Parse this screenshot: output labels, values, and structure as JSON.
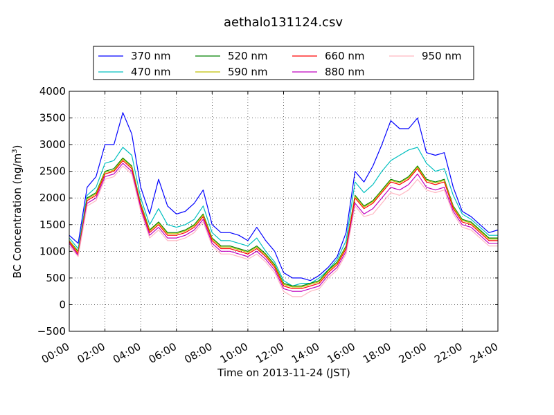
{
  "chart_data": {
    "type": "line",
    "title": "aethalo131124.csv",
    "xlabel": "Time on 2013-11-24 (JST)",
    "ylabel": "BC Concentration (ng/m",
    "ylabel_sup": "3",
    "ylabel_close": ")",
    "xlim": [
      "00:00",
      "24:00"
    ],
    "ylim": [
      -500,
      4000
    ],
    "grid": true,
    "legend_position": "top-center",
    "x_ticks": [
      "00:00",
      "02:00",
      "04:00",
      "06:00",
      "08:00",
      "10:00",
      "12:00",
      "14:00",
      "16:00",
      "18:00",
      "20:00",
      "22:00",
      "24:00"
    ],
    "y_ticks": [
      "−500",
      "0",
      "500",
      "1000",
      "1500",
      "2000",
      "2500",
      "3000",
      "3500",
      "4000"
    ],
    "x": [
      "00:00",
      "00:30",
      "01:00",
      "01:30",
      "02:00",
      "02:30",
      "03:00",
      "03:30",
      "04:00",
      "04:30",
      "05:00",
      "05:30",
      "06:00",
      "06:30",
      "07:00",
      "07:30",
      "08:00",
      "08:30",
      "09:00",
      "09:30",
      "10:00",
      "10:30",
      "11:00",
      "11:30",
      "12:00",
      "12:30",
      "13:00",
      "13:30",
      "14:00",
      "14:30",
      "15:00",
      "15:30",
      "16:00",
      "16:30",
      "17:00",
      "17:30",
      "18:00",
      "18:30",
      "19:00",
      "19:30",
      "20:00",
      "20:30",
      "21:00",
      "21:30",
      "22:00",
      "22:30",
      "23:00",
      "23:30",
      "24:00"
    ],
    "series": [
      {
        "name": "370 nm",
        "color": "#0000ff",
        "values": [
          1300,
          1150,
          2200,
          2400,
          3000,
          3000,
          3600,
          3200,
          2200,
          1700,
          2350,
          1850,
          1700,
          1750,
          1900,
          2150,
          1500,
          1350,
          1350,
          1300,
          1200,
          1450,
          1200,
          1000,
          600,
          500,
          500,
          450,
          550,
          700,
          900,
          1350,
          2500,
          2300,
          2600,
          3000,
          3450,
          3300,
          3300,
          3500,
          2850,
          2800,
          2850,
          2200,
          1750,
          1650,
          1500,
          1350,
          1400
        ]
      },
      {
        "name": "470 nm",
        "color": "#00bfbf",
        "values": [
          1250,
          1050,
          2050,
          2200,
          2650,
          2700,
          2950,
          2800,
          2000,
          1500,
          1800,
          1500,
          1450,
          1500,
          1600,
          1850,
          1350,
          1200,
          1200,
          1150,
          1100,
          1250,
          1000,
          800,
          450,
          350,
          400,
          400,
          500,
          650,
          850,
          1200,
          2300,
          2100,
          2250,
          2500,
          2700,
          2800,
          2900,
          2950,
          2650,
          2500,
          2550,
          2050,
          1700,
          1600,
          1450,
          1300,
          1300
        ]
      },
      {
        "name": "520 nm",
        "color": "#008000",
        "values": [
          1200,
          1000,
          2000,
          2100,
          2500,
          2550,
          2750,
          2600,
          1900,
          1400,
          1550,
          1350,
          1350,
          1400,
          1500,
          1700,
          1250,
          1100,
          1100,
          1050,
          1000,
          1100,
          950,
          750,
          400,
          350,
          350,
          400,
          450,
          650,
          800,
          1100,
          2050,
          1850,
          1950,
          2150,
          2350,
          2300,
          2400,
          2600,
          2350,
          2300,
          2350,
          1850,
          1600,
          1550,
          1400,
          1250,
          1250
        ]
      },
      {
        "name": "590 nm",
        "color": "#bfbf00",
        "values": [
          1200,
          980,
          1980,
          2080,
          2480,
          2520,
          2730,
          2580,
          1880,
          1380,
          1530,
          1330,
          1330,
          1380,
          1480,
          1680,
          1230,
          1080,
          1080,
          1030,
          980,
          1080,
          930,
          730,
          380,
          330,
          330,
          380,
          430,
          630,
          780,
          1080,
          2030,
          1830,
          1930,
          2130,
          2330,
          2280,
          2380,
          2580,
          2330,
          2280,
          2330,
          1830,
          1580,
          1530,
          1380,
          1230,
          1230
        ]
      },
      {
        "name": "660 nm",
        "color": "#ff0000",
        "values": [
          1180,
          950,
          1950,
          2050,
          2450,
          2500,
          2700,
          2550,
          1850,
          1350,
          1500,
          1300,
          1300,
          1350,
          1450,
          1650,
          1200,
          1050,
          1050,
          1000,
          950,
          1050,
          900,
          700,
          350,
          300,
          300,
          350,
          400,
          600,
          750,
          1050,
          2000,
          1800,
          1900,
          2100,
          2300,
          2250,
          2350,
          2550,
          2300,
          2250,
          2300,
          1800,
          1550,
          1500,
          1350,
          1200,
          1200
        ]
      },
      {
        "name": "880 nm",
        "color": "#bf00bf",
        "values": [
          1150,
          920,
          1900,
          2000,
          2400,
          2450,
          2650,
          2500,
          1800,
          1300,
          1450,
          1250,
          1250,
          1300,
          1400,
          1600,
          1150,
          1000,
          1000,
          950,
          900,
          1000,
          850,
          650,
          300,
          250,
          250,
          300,
          350,
          550,
          700,
          1000,
          1900,
          1700,
          1800,
          2000,
          2200,
          2150,
          2250,
          2450,
          2200,
          2150,
          2200,
          1750,
          1500,
          1450,
          1300,
          1150,
          1150
        ]
      },
      {
        "name": "950 nm",
        "color": "#ffb6c1",
        "values": [
          1100,
          900,
          1850,
          1950,
          2350,
          2400,
          2600,
          2450,
          1750,
          1250,
          1400,
          1200,
          1200,
          1250,
          1350,
          1550,
          1100,
          950,
          950,
          900,
          850,
          950,
          800,
          600,
          250,
          150,
          150,
          250,
          300,
          500,
          650,
          950,
          1850,
          1650,
          1700,
          1900,
          2100,
          2050,
          2150,
          2350,
          2150,
          2100,
          2150,
          1700,
          1450,
          1400,
          1250,
          1100,
          1100
        ]
      }
    ]
  }
}
